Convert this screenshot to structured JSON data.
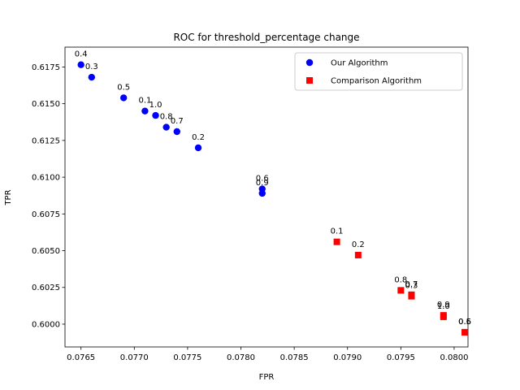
{
  "chart_data": {
    "type": "scatter",
    "title": "ROC for threshold_percentage change",
    "xlabel": "FPR",
    "ylabel": "TPR",
    "xlim": [
      0.07635,
      0.08013
    ],
    "ylim": [
      0.59845,
      0.61885
    ],
    "xticks": [
      "0.0765",
      "0.0770",
      "0.0775",
      "0.0780",
      "0.0785",
      "0.0790",
      "0.0795",
      "0.0800"
    ],
    "xtick_values": [
      0.0765,
      0.077,
      0.0775,
      0.078,
      0.0785,
      0.079,
      0.0795,
      0.08
    ],
    "yticks": [
      "0.6000",
      "0.6025",
      "0.6050",
      "0.6075",
      "0.6100",
      "0.6125",
      "0.6150",
      "0.6175"
    ],
    "ytick_values": [
      0.6,
      0.6025,
      0.605,
      0.6075,
      0.61,
      0.6125,
      0.615,
      0.6175
    ],
    "legend_position": "top-right",
    "grid": false,
    "series": [
      {
        "name": "Our Algorithm",
        "color": "#0000ff",
        "marker": "circle",
        "points": [
          {
            "x": 0.0765,
            "y": 0.61765,
            "label": "0.4"
          },
          {
            "x": 0.0766,
            "y": 0.6168,
            "label": "0.3"
          },
          {
            "x": 0.0769,
            "y": 0.6154,
            "label": "0.5"
          },
          {
            "x": 0.0771,
            "y": 0.6145,
            "label": "0.1"
          },
          {
            "x": 0.0772,
            "y": 0.6142,
            "label": "1.0"
          },
          {
            "x": 0.0773,
            "y": 0.6134,
            "label": "0.8"
          },
          {
            "x": 0.0774,
            "y": 0.6131,
            "label": "0.7"
          },
          {
            "x": 0.0776,
            "y": 0.612,
            "label": "0.2"
          },
          {
            "x": 0.0782,
            "y": 0.6092,
            "label": "0.6"
          },
          {
            "x": 0.0782,
            "y": 0.6089,
            "label": "0.9"
          }
        ]
      },
      {
        "name": "Comparison Algorithm",
        "color": "#ff0000",
        "marker": "square",
        "points": [
          {
            "x": 0.0789,
            "y": 0.6056,
            "label": "0.1"
          },
          {
            "x": 0.0791,
            "y": 0.6047,
            "label": "0.2"
          },
          {
            "x": 0.0795,
            "y": 0.6023,
            "label": "0.8"
          },
          {
            "x": 0.0796,
            "y": 0.602,
            "label": "0.7"
          },
          {
            "x": 0.0796,
            "y": 0.6019,
            "label": "0.3"
          },
          {
            "x": 0.0799,
            "y": 0.6006,
            "label": "0.9"
          },
          {
            "x": 0.0799,
            "y": 0.6005,
            "label": "1.0"
          },
          {
            "x": 0.0801,
            "y": 0.59945,
            "label": "0.6"
          },
          {
            "x": 0.0801,
            "y": 0.59945,
            "label": "0.5"
          }
        ]
      }
    ]
  }
}
